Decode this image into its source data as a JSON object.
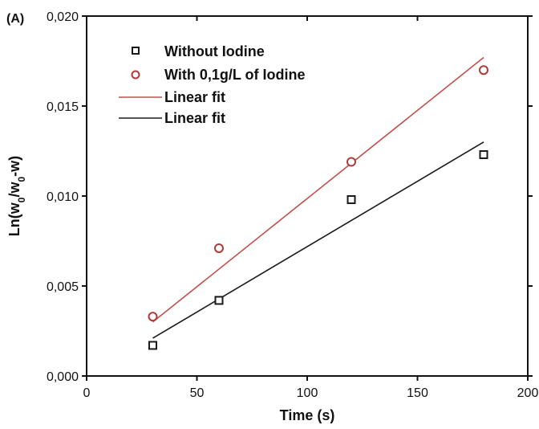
{
  "chart_data": {
    "type": "scatter",
    "panel_label": "(A)",
    "xlabel": "Time (s)",
    "ylabel": {
      "prefix": "Ln(w",
      "sub1": "0",
      "mid": "/w",
      "sub2": "0",
      "suffix": "-w)"
    },
    "xlim": [
      0,
      200
    ],
    "ylim": [
      0,
      0.02
    ],
    "x_ticks": [
      {
        "value": 0,
        "label": "0"
      },
      {
        "value": 50,
        "label": "50"
      },
      {
        "value": 100,
        "label": "100"
      },
      {
        "value": 150,
        "label": "150"
      },
      {
        "value": 200,
        "label": "200"
      }
    ],
    "y_ticks": [
      {
        "value": 0,
        "label": "0,000"
      },
      {
        "value": 0.005,
        "label": "0,005"
      },
      {
        "value": 0.01,
        "label": "0,010"
      },
      {
        "value": 0.015,
        "label": "0,015"
      },
      {
        "value": 0.02,
        "label": "0,020"
      }
    ],
    "grid": false,
    "legend_position": "top-left",
    "series": [
      {
        "name": "Without Iodine",
        "marker": "square",
        "color": "#1a1a1a",
        "points": [
          [
            30,
            0.0017
          ],
          [
            60,
            0.0042
          ],
          [
            120,
            0.0098
          ],
          [
            180,
            0.0123
          ]
        ]
      },
      {
        "name": "With 0,1g/L of Iodine",
        "marker": "circle",
        "color": "#b03a3a",
        "points": [
          [
            30,
            0.0033
          ],
          [
            60,
            0.0071
          ],
          [
            120,
            0.0119
          ],
          [
            180,
            0.017
          ]
        ]
      }
    ],
    "fits": [
      {
        "name": "Linear fit",
        "color": "#c0504d",
        "x": [
          30,
          180
        ],
        "y": [
          0.003,
          0.0177
        ]
      },
      {
        "name": "Linear fit",
        "color": "#1a1a1a",
        "x": [
          30,
          180
        ],
        "y": [
          0.0021,
          0.013
        ]
      }
    ]
  }
}
